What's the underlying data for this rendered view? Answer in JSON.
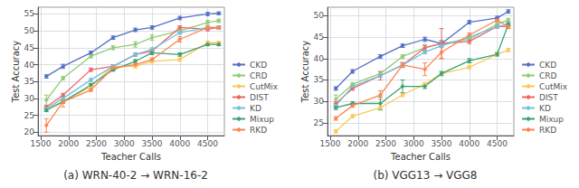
{
  "chart_data": [
    {
      "type": "line",
      "subtitle": "(a) WRN-40-2 → WRN-16-2",
      "xlabel": "Teacher Calls",
      "ylabel": "Test Accuracy",
      "x": [
        1600,
        1900,
        2400,
        2800,
        3200,
        3500,
        4000,
        4500,
        4700
      ],
      "series": [
        {
          "name": "CKD",
          "values": [
            36.5,
            39.5,
            43.5,
            48.0,
            50.3,
            51.0,
            53.8,
            55.0,
            55.2
          ],
          "yerr": [
            0.5,
            0.6,
            0.5,
            0.5,
            0.5,
            0.5,
            0.5,
            0.5,
            0.4
          ]
        },
        {
          "name": "CRD",
          "values": [
            29.5,
            36.0,
            42.5,
            45.0,
            46.0,
            48.0,
            50.0,
            52.5,
            53.0
          ],
          "yerr": [
            1.5,
            0.5,
            0.5,
            0.6,
            0.8,
            0.8,
            0.8,
            0.6,
            0.5
          ]
        },
        {
          "name": "CutMix",
          "values": [
            27.0,
            29.0,
            33.5,
            39.5,
            39.5,
            41.0,
            41.5,
            46.5,
            46.5
          ],
          "yerr": [
            0.4,
            0.4,
            1.0,
            0.4,
            0.5,
            0.5,
            0.5,
            0.5,
            0.4
          ]
        },
        {
          "name": "DIST",
          "values": [
            27.5,
            31.0,
            38.5,
            39.5,
            43.0,
            44.0,
            51.0,
            50.5,
            51.0
          ],
          "yerr": [
            0.4,
            0.5,
            0.5,
            0.5,
            0.5,
            0.5,
            0.5,
            0.5,
            0.4
          ]
        },
        {
          "name": "KD",
          "values": [
            27.0,
            30.0,
            35.5,
            39.5,
            43.0,
            44.5,
            49.5,
            51.0,
            51.0
          ],
          "yerr": [
            0.4,
            0.4,
            0.4,
            0.4,
            0.5,
            0.5,
            0.5,
            0.4,
            0.4
          ]
        },
        {
          "name": "Mixup",
          "values": [
            26.5,
            29.0,
            34.0,
            38.5,
            41.0,
            43.5,
            43.0,
            46.0,
            46.0
          ],
          "yerr": [
            0.4,
            0.4,
            0.4,
            0.4,
            0.5,
            0.5,
            0.5,
            0.4,
            0.4
          ]
        },
        {
          "name": "RKD",
          "values": [
            22.0,
            29.0,
            32.5,
            39.0,
            40.0,
            41.5,
            47.5,
            51.0,
            51.0
          ],
          "yerr": [
            2.0,
            1.5,
            0.4,
            0.6,
            0.5,
            0.5,
            0.8,
            0.4,
            0.4
          ]
        }
      ],
      "xlim": [
        1450,
        4800
      ],
      "xticks": [
        1500,
        2000,
        2500,
        3000,
        3500,
        4000,
        4500
      ],
      "ylim": [
        19,
        57
      ],
      "yticks": [
        20,
        25,
        30,
        35,
        40,
        45,
        50,
        55
      ],
      "grid": true,
      "legend": "lower right",
      "marker": "diamond"
    },
    {
      "type": "line",
      "subtitle": "(b) VGG13 → VGG8",
      "xlabel": "Teacher Calls",
      "ylabel": "Test Accuracy",
      "x": [
        1600,
        1900,
        2400,
        2800,
        3200,
        3500,
        4000,
        4500,
        4700
      ],
      "series": [
        {
          "name": "CKD",
          "values": [
            33.0,
            37.0,
            40.5,
            43.0,
            44.5,
            43.5,
            48.5,
            49.5,
            51.0
          ],
          "yerr": [
            0.4,
            0.4,
            0.4,
            0.4,
            0.5,
            0.5,
            0.4,
            0.4,
            0.4
          ]
        },
        {
          "name": "CRD",
          "values": [
            30.5,
            34.0,
            36.5,
            40.5,
            42.5,
            43.5,
            44.5,
            48.0,
            49.0
          ],
          "yerr": [
            1.0,
            0.4,
            0.4,
            0.4,
            0.8,
            0.8,
            0.5,
            0.4,
            0.4
          ]
        },
        {
          "name": "CutMix",
          "values": [
            23.0,
            26.5,
            28.5,
            31.5,
            34.0,
            36.5,
            38.0,
            41.0,
            42.0
          ],
          "yerr": [
            0.4,
            0.4,
            0.4,
            0.4,
            0.4,
            0.4,
            0.4,
            0.4,
            0.4
          ]
        },
        {
          "name": "DIST",
          "values": [
            29.5,
            33.0,
            36.0,
            38.5,
            42.5,
            43.5,
            44.0,
            47.5,
            47.5
          ],
          "yerr": [
            0.4,
            0.4,
            1.0,
            0.5,
            0.5,
            3.5,
            0.5,
            0.4,
            0.4
          ]
        },
        {
          "name": "KD",
          "values": [
            29.0,
            33.5,
            36.0,
            38.5,
            41.5,
            43.0,
            45.0,
            47.5,
            48.0
          ],
          "yerr": [
            0.4,
            0.4,
            0.4,
            0.4,
            0.4,
            0.4,
            0.4,
            0.4,
            0.4
          ]
        },
        {
          "name": "Mixup",
          "values": [
            28.5,
            29.5,
            29.5,
            33.5,
            33.5,
            36.5,
            39.5,
            41.0,
            48.0
          ],
          "yerr": [
            0.4,
            0.4,
            1.5,
            1.5,
            0.5,
            0.5,
            0.5,
            0.4,
            0.4
          ]
        },
        {
          "name": "RKD",
          "values": [
            26.0,
            29.0,
            31.5,
            38.5,
            37.5,
            41.5,
            45.5,
            49.0,
            47.5
          ],
          "yerr": [
            0.4,
            0.4,
            1.0,
            0.6,
            1.5,
            1.5,
            0.5,
            0.4,
            0.5
          ]
        }
      ],
      "xlim": [
        1450,
        4800
      ],
      "xticks": [
        1500,
        2000,
        2500,
        3000,
        3500,
        4000,
        4500
      ],
      "ylim": [
        22,
        52
      ],
      "yticks": [
        25,
        30,
        35,
        40,
        45,
        50
      ],
      "grid": true,
      "legend": "lower right",
      "marker": "diamond"
    }
  ]
}
